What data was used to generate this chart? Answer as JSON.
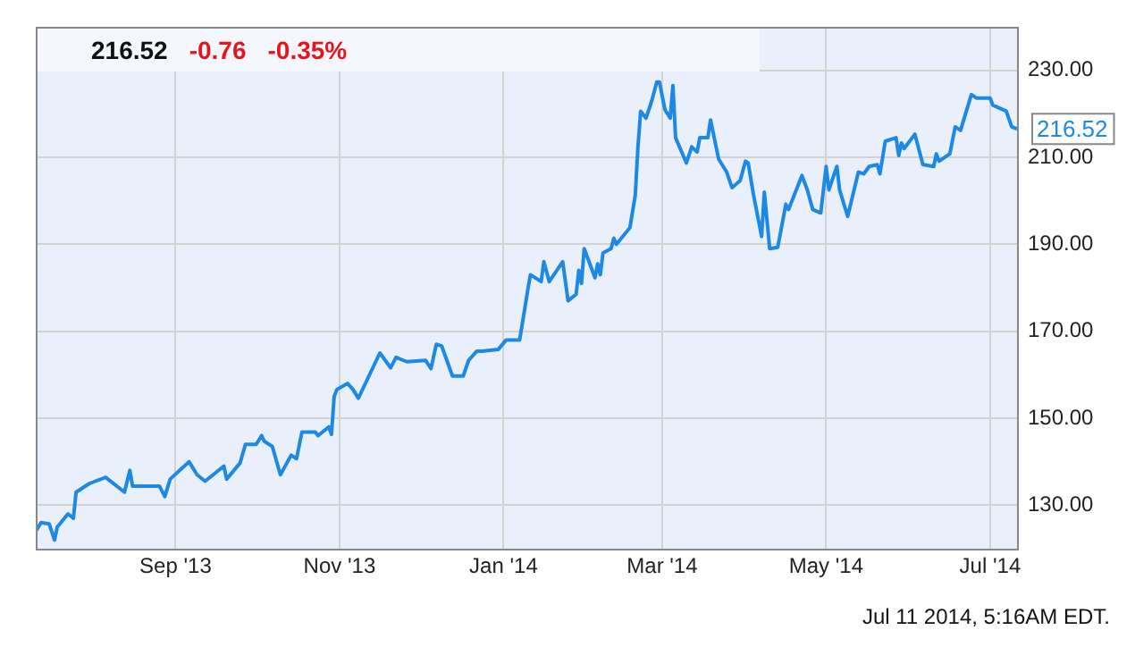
{
  "chart_data": {
    "type": "line",
    "x": [
      "2013-07-11",
      "2013-07-13",
      "2013-07-16",
      "2013-07-18",
      "2013-07-19",
      "2013-07-23",
      "2013-07-25",
      "2013-07-26",
      "2013-07-31",
      "2013-08-06",
      "2013-08-13",
      "2013-08-15",
      "2013-08-16",
      "2013-08-26",
      "2013-08-28",
      "2013-08-30",
      "2013-09-06",
      "2013-09-09",
      "2013-09-12",
      "2013-09-19",
      "2013-09-20",
      "2013-09-25",
      "2013-09-27",
      "2013-10-01",
      "2013-10-03",
      "2013-10-04",
      "2013-10-07",
      "2013-10-10",
      "2013-10-14",
      "2013-10-16",
      "2013-10-18",
      "2013-10-23",
      "2013-10-24",
      "2013-10-28",
      "2013-10-29",
      "2013-10-30",
      "2013-10-31",
      "2013-11-04",
      "2013-11-06",
      "2013-11-08",
      "2013-11-16",
      "2013-11-20",
      "2013-11-22",
      "2013-11-26",
      "2013-12-03",
      "2013-12-05",
      "2013-12-07",
      "2013-12-09",
      "2013-12-13",
      "2013-12-17",
      "2013-12-19",
      "2013-12-22",
      "2013-12-24",
      "2013-12-30",
      "2014-01-02",
      "2014-01-07",
      "2014-01-10",
      "2014-01-11",
      "2014-01-15",
      "2014-01-16",
      "2014-01-18",
      "2014-01-23",
      "2014-01-25",
      "2014-01-28",
      "2014-01-29",
      "2014-01-30",
      "2014-01-31",
      "2014-02-04",
      "2014-02-05",
      "2014-02-06",
      "2014-02-07",
      "2014-02-10",
      "2014-02-11",
      "2014-02-12",
      "2014-02-17",
      "2014-02-19",
      "2014-02-20",
      "2014-02-21",
      "2014-02-23",
      "2014-02-25",
      "2014-02-27",
      "2014-02-28",
      "2014-03-02",
      "2014-03-04",
      "2014-03-05",
      "2014-03-06",
      "2014-03-10",
      "2014-03-12",
      "2014-03-14",
      "2014-03-15",
      "2014-03-18",
      "2014-03-19",
      "2014-03-22",
      "2014-03-25",
      "2014-03-27",
      "2014-03-30",
      "2014-04-01",
      "2014-04-02",
      "2014-04-04",
      "2014-04-07",
      "2014-04-08",
      "2014-04-10",
      "2014-04-13",
      "2014-04-16",
      "2014-04-17",
      "2014-04-22",
      "2014-04-24",
      "2014-04-26",
      "2014-04-29",
      "2014-05-01",
      "2014-05-02",
      "2014-05-05",
      "2014-05-06",
      "2014-05-09",
      "2014-05-13",
      "2014-05-15",
      "2014-05-17",
      "2014-05-20",
      "2014-05-21",
      "2014-05-23",
      "2014-05-27",
      "2014-05-28",
      "2014-05-29",
      "2014-05-30",
      "2014-06-03",
      "2014-06-06",
      "2014-06-10",
      "2014-06-11",
      "2014-06-12",
      "2014-06-16",
      "2014-06-18",
      "2014-06-20",
      "2014-06-24",
      "2014-06-26",
      "2014-07-01",
      "2014-07-02",
      "2014-07-07",
      "2014-07-09",
      "2014-07-11"
    ],
    "series": [
      {
        "color": "#1e88e5",
        "values": [
          124,
          126,
          125.7,
          122,
          125,
          128,
          127,
          133,
          135,
          136.4,
          133,
          138,
          134.4,
          134.4,
          132,
          136,
          140,
          137,
          135.5,
          139,
          136,
          139.7,
          144,
          144,
          146,
          144.7,
          143.5,
          137,
          141.5,
          140.7,
          146.8,
          146.8,
          146,
          148,
          146.3,
          155,
          156.6,
          158,
          156.6,
          154.6,
          165,
          161.6,
          164,
          163,
          163.3,
          161.4,
          167,
          166.6,
          159.7,
          159.7,
          163.3,
          165.4,
          165.4,
          165.8,
          168,
          168,
          179.4,
          183,
          181.4,
          186,
          181.4,
          186,
          177,
          178.5,
          184,
          181,
          189,
          182.3,
          185.5,
          183,
          188,
          189,
          191.4,
          190,
          193.8,
          201.3,
          212.4,
          220.6,
          219,
          222.7,
          227.3,
          227.3,
          221,
          219,
          226.5,
          214.5,
          208.7,
          212.4,
          211.2,
          214.5,
          214.5,
          218.6,
          209.6,
          206.6,
          203,
          204.6,
          209.1,
          208.7,
          201.3,
          191.8,
          202,
          189,
          189.3,
          199.2,
          198,
          205.8,
          202.5,
          198,
          197.2,
          207.9,
          202.5,
          207.9,
          202.5,
          196.4,
          206.6,
          206.2,
          207.9,
          208.3,
          206.2,
          213.7,
          214.5,
          210.4,
          213.3,
          212,
          215.3,
          208.3,
          207.9,
          210.8,
          209.1,
          210.8,
          217,
          216.2,
          224.4,
          223.6,
          223.6,
          222,
          220.6,
          217,
          216.52
        ]
      }
    ],
    "xlim": [
      "2013-07-11",
      "2014-07-11"
    ],
    "xticks": [
      {
        "value": "2013-09-01",
        "label": "Sep '13"
      },
      {
        "value": "2013-11-01",
        "label": "Nov '13"
      },
      {
        "value": "2014-01-01",
        "label": "Jan '14"
      },
      {
        "value": "2014-03-01",
        "label": "Mar '14"
      },
      {
        "value": "2014-05-01",
        "label": "May '14"
      },
      {
        "value": "2014-07-01",
        "label": "Jul '14"
      }
    ],
    "ylim": [
      120,
      240
    ],
    "yticks": [
      {
        "value": 130,
        "label": "130.00"
      },
      {
        "value": 150,
        "label": "150.00"
      },
      {
        "value": 170,
        "label": "170.00"
      },
      {
        "value": 190,
        "label": "190.00"
      },
      {
        "value": 210,
        "label": "210.00"
      },
      {
        "value": 230,
        "label": "230.00"
      }
    ],
    "grid": true,
    "marker": "none",
    "line_style": "solid",
    "annotations": [
      "216.52",
      "-0.76",
      "-0.35%",
      {
        "text": "216.52",
        "x": "2014-07-11",
        "y": 216.52
      },
      "Jul 11 2014, 5:16AM EDT."
    ]
  }
}
